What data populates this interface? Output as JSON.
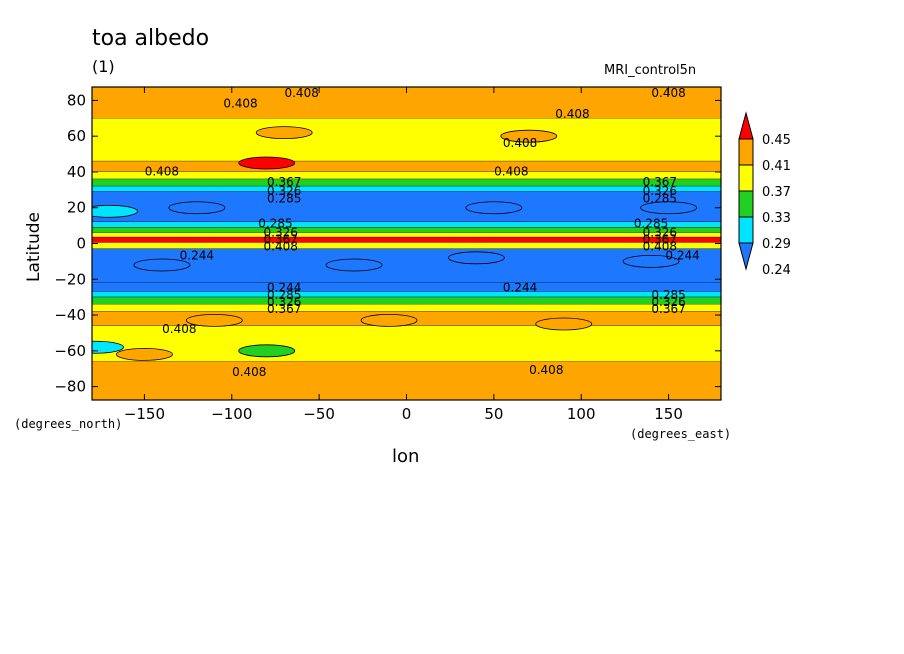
{
  "chart_data": {
    "type": "heatmap",
    "title": "toa albedo",
    "subtitle": "(1)",
    "run_name": "MRI_control5n",
    "xlabel": "lon",
    "ylabel": "Latitude",
    "x_unit": "(degrees_east)",
    "y_unit": "(degrees_north)",
    "xlim": [
      -180,
      180
    ],
    "ylim": [
      -87.5,
      87.5
    ],
    "x_ticks": [
      -150,
      -100,
      -50,
      0,
      50,
      100,
      150
    ],
    "y_ticks": [
      -80,
      -60,
      -40,
      -20,
      0,
      20,
      40,
      60,
      80
    ],
    "colorbar": {
      "levels": [
        "0.24",
        "0.29",
        "0.33",
        "0.37",
        "0.41",
        "0.45"
      ],
      "colors": [
        "#1e78ff",
        "#00e5ff",
        "#22d022",
        "#ffff00",
        "#ffa500",
        "#ff0000"
      ]
    },
    "zonal_bands": [
      {
        "lat_from": 87.5,
        "lat_to": 70,
        "value": 0.42
      },
      {
        "lat_from": 70,
        "lat_to": 46,
        "value": 0.39
      },
      {
        "lat_from": 46,
        "lat_to": 40,
        "value": 0.42
      },
      {
        "lat_from": 40,
        "lat_to": 36,
        "value": 0.39
      },
      {
        "lat_from": 36,
        "lat_to": 32,
        "value": 0.35
      },
      {
        "lat_from": 32,
        "lat_to": 29,
        "value": 0.31
      },
      {
        "lat_from": 29,
        "lat_to": 12,
        "value": 0.27
      },
      {
        "lat_from": 12,
        "lat_to": 9,
        "value": 0.31
      },
      {
        "lat_from": 9,
        "lat_to": 6,
        "value": 0.35
      },
      {
        "lat_from": 6,
        "lat_to": 3.5,
        "value": 0.39
      },
      {
        "lat_from": 3.5,
        "lat_to": 0.5,
        "value": 0.46
      },
      {
        "lat_from": 0.5,
        "lat_to": -3,
        "value": 0.39
      },
      {
        "lat_from": -3,
        "lat_to": -22,
        "value": 0.22
      },
      {
        "lat_from": -22,
        "lat_to": -27,
        "value": 0.27
      },
      {
        "lat_from": -27,
        "lat_to": -30,
        "value": 0.31
      },
      {
        "lat_from": -30,
        "lat_to": -34,
        "value": 0.35
      },
      {
        "lat_from": -34,
        "lat_to": -38,
        "value": 0.39
      },
      {
        "lat_from": -38,
        "lat_to": -46,
        "value": 0.42
      },
      {
        "lat_from": -46,
        "lat_to": -66,
        "value": 0.39
      },
      {
        "lat_from": -66,
        "lat_to": -87.5,
        "value": 0.42
      }
    ],
    "patches": [
      {
        "lon": -120,
        "lat": 20,
        "value": 0.22
      },
      {
        "lon": 50,
        "lat": 20,
        "value": 0.22
      },
      {
        "lon": 150,
        "lat": 20,
        "value": 0.22
      },
      {
        "lon": -70,
        "lat": 62,
        "value": 0.42
      },
      {
        "lon": 70,
        "lat": 60,
        "value": 0.42
      },
      {
        "lon": -80,
        "lat": 45,
        "value": 0.46
      },
      {
        "lon": -170,
        "lat": 18,
        "value": 0.31
      },
      {
        "lon": -110,
        "lat": -43,
        "value": 0.42
      },
      {
        "lon": -10,
        "lat": -43,
        "value": 0.42
      },
      {
        "lon": 90,
        "lat": -45,
        "value": 0.42
      },
      {
        "lon": -150,
        "lat": -62,
        "value": 0.42
      },
      {
        "lon": -80,
        "lat": -60,
        "value": 0.35
      },
      {
        "lon": -178,
        "lat": -58,
        "value": 0.31
      },
      {
        "lon": -140,
        "lat": -12,
        "value": 0.27
      },
      {
        "lon": -30,
        "lat": -12,
        "value": 0.27
      },
      {
        "lon": 40,
        "lat": -8,
        "value": 0.27
      },
      {
        "lon": 140,
        "lat": -10,
        "value": 0.27
      }
    ],
    "contour_labels": [
      {
        "text": "0.408",
        "lon": -60,
        "lat": 84
      },
      {
        "text": "0.408",
        "lon": 150,
        "lat": 84
      },
      {
        "text": "0.408",
        "lon": -95,
        "lat": 78
      },
      {
        "text": "0.408",
        "lon": 95,
        "lat": 72
      },
      {
        "text": "0.408",
        "lon": 65,
        "lat": 56
      },
      {
        "text": "0.408",
        "lon": -140,
        "lat": 40
      },
      {
        "text": "0.408",
        "lon": 60,
        "lat": 40
      },
      {
        "text": "0.367",
        "lon": -70,
        "lat": 34
      },
      {
        "text": "0.367",
        "lon": 145,
        "lat": 34
      },
      {
        "text": "0.326",
        "lon": -70,
        "lat": 29
      },
      {
        "text": "0.326",
        "lon": 145,
        "lat": 29
      },
      {
        "text": "0.285",
        "lon": -70,
        "lat": 25
      },
      {
        "text": "0.285",
        "lon": 145,
        "lat": 25
      },
      {
        "text": "0.285",
        "lon": -75,
        "lat": 11
      },
      {
        "text": "0.285",
        "lon": 140,
        "lat": 11
      },
      {
        "text": "0.326",
        "lon": -72,
        "lat": 6
      },
      {
        "text": "0.326",
        "lon": 145,
        "lat": 6
      },
      {
        "text": "0.367",
        "lon": -72,
        "lat": 2
      },
      {
        "text": "0.367",
        "lon": 145,
        "lat": 2
      },
      {
        "text": "0.408",
        "lon": -72,
        "lat": -2
      },
      {
        "text": "0.408",
        "lon": 145,
        "lat": -2
      },
      {
        "text": "0.244",
        "lon": -120,
        "lat": -7
      },
      {
        "text": "0.244",
        "lon": 158,
        "lat": -7
      },
      {
        "text": "0.244",
        "lon": -70,
        "lat": -25
      },
      {
        "text": "0.244",
        "lon": 65,
        "lat": -25
      },
      {
        "text": "0.285",
        "lon": -70,
        "lat": -29
      },
      {
        "text": "0.285",
        "lon": 150,
        "lat": -29
      },
      {
        "text": "0.326",
        "lon": -70,
        "lat": -33
      },
      {
        "text": "0.326",
        "lon": 150,
        "lat": -33
      },
      {
        "text": "0.367",
        "lon": -70,
        "lat": -37
      },
      {
        "text": "0.367",
        "lon": 150,
        "lat": -37
      },
      {
        "text": "0.408",
        "lon": -130,
        "lat": -48
      },
      {
        "text": "0.408",
        "lon": -90,
        "lat": -72
      },
      {
        "text": "0.408",
        "lon": 80,
        "lat": -71
      }
    ]
  }
}
